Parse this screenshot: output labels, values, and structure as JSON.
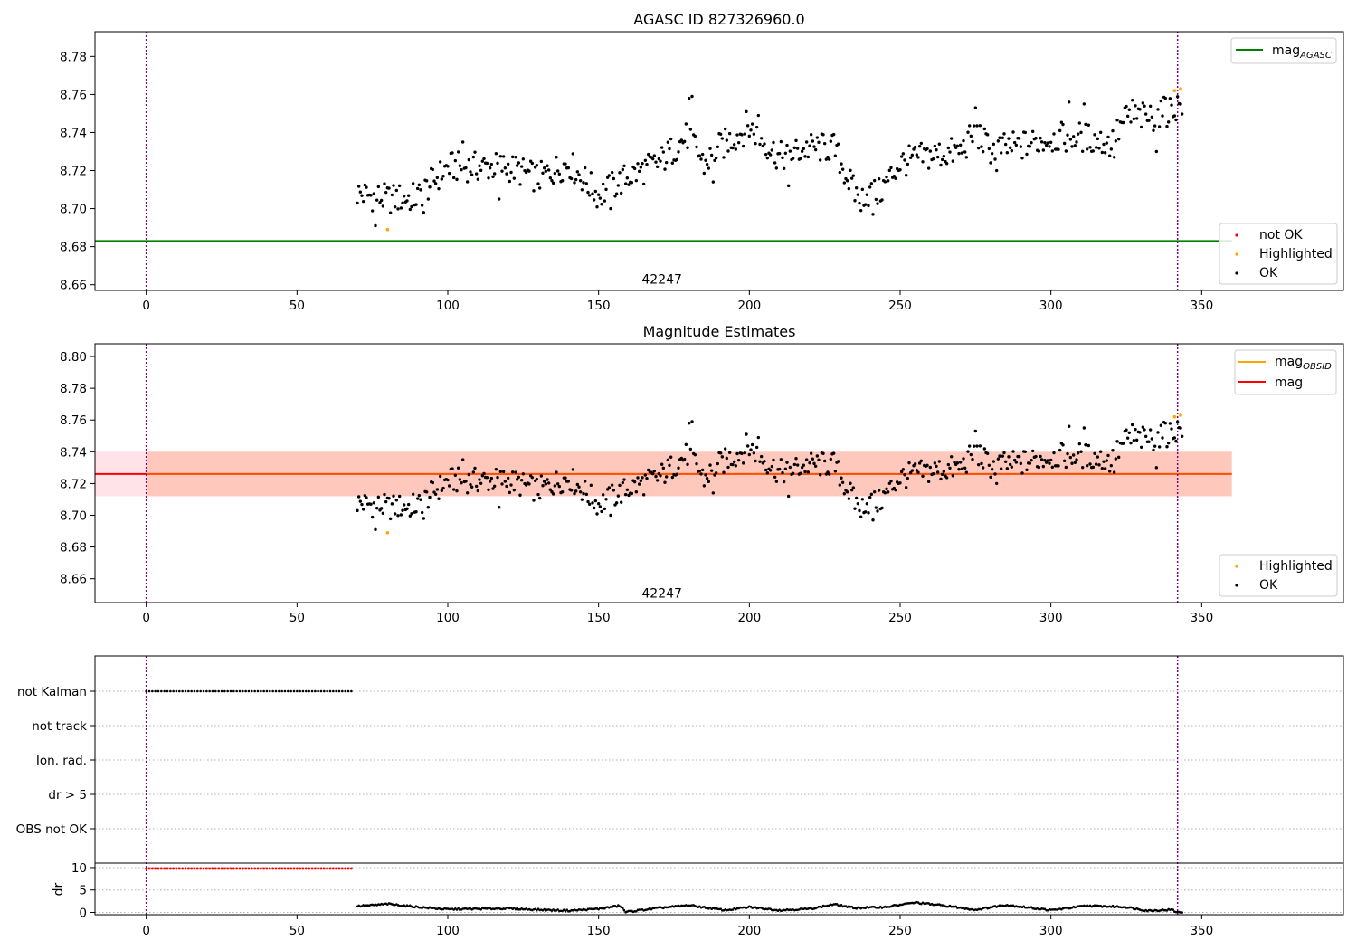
{
  "colors": {
    "ok": "#000000",
    "not_ok": "#ff0000",
    "highlighted": "#ffa500",
    "mag_agasc_line": "#008000",
    "mag_line": "#ff0000",
    "mag_obsid_line": "#ffa500",
    "band_outer": "#ffc0cb",
    "band_inner": "#ffa07a",
    "obs_marker": "#800080",
    "grid": "#b0b0b0"
  },
  "chart_data": [
    {
      "type": "scatter",
      "title": "AGASC ID 827326960.0",
      "xlim": [
        -17,
        397
      ],
      "ylim": [
        8.657,
        8.793
      ],
      "xticks": [
        0,
        50,
        100,
        150,
        200,
        250,
        300,
        350
      ],
      "xtick_labels": [
        "0",
        "50",
        "100",
        "150",
        "200",
        "250",
        "300",
        "350"
      ],
      "yticks": [
        8.66,
        8.68,
        8.7,
        8.72,
        8.74,
        8.76,
        8.78
      ],
      "ytick_labels": [
        "8.66",
        "8.68",
        "8.70",
        "8.72",
        "8.74",
        "8.76",
        "8.78"
      ],
      "obs_boundaries": [
        0,
        342
      ],
      "obsid_label": {
        "text": "42247",
        "x": 171,
        "y": 8.663
      },
      "hlines": [
        {
          "name": "mag_AGASC",
          "y": 8.683,
          "x": [
            -17,
            360
          ]
        }
      ],
      "legend_top": [
        {
          "label": "mag",
          "sub": "AGASC"
        }
      ],
      "legend_bottom": [
        "not OK",
        "Highlighted",
        "OK"
      ],
      "highlighted": [
        {
          "x": 80,
          "y": 8.689
        },
        {
          "x": 341,
          "y": 8.762
        },
        {
          "x": 343,
          "y": 8.763
        }
      ]
    },
    {
      "type": "scatter",
      "title": "Magnitude Estimates",
      "xlim": [
        -17,
        397
      ],
      "ylim": [
        8.645,
        8.808
      ],
      "xticks": [
        0,
        50,
        100,
        150,
        200,
        250,
        300,
        350
      ],
      "xtick_labels": [
        "0",
        "50",
        "100",
        "150",
        "200",
        "250",
        "300",
        "350"
      ],
      "yticks": [
        8.66,
        8.68,
        8.7,
        8.72,
        8.74,
        8.76,
        8.78,
        8.8
      ],
      "ytick_labels": [
        "8.66",
        "8.68",
        "8.70",
        "8.72",
        "8.74",
        "8.76",
        "8.78",
        "8.80"
      ],
      "obs_boundaries": [
        0,
        342
      ],
      "obsid_label": {
        "text": "42247",
        "x": 171,
        "y": 8.651
      },
      "mag": 8.726,
      "mag_band": [
        8.712,
        8.74
      ],
      "obsid_band": {
        "x": [
          0,
          360
        ],
        "y": [
          8.712,
          8.74
        ]
      },
      "outer_band": {
        "x": [
          -17,
          360
        ],
        "y": [
          8.712,
          8.74
        ]
      },
      "legend_top": [
        {
          "label": "mag",
          "sub": "OBSID"
        },
        {
          "label": "mag",
          "sub": ""
        }
      ],
      "legend_bottom": [
        "Highlighted",
        "OK"
      ],
      "highlighted": [
        {
          "x": 80,
          "y": 8.689
        },
        {
          "x": 341,
          "y": 8.762
        },
        {
          "x": 343,
          "y": 8.763
        }
      ]
    },
    {
      "type": "scatter",
      "title": "",
      "xlim": [
        -17,
        397
      ],
      "flag_rows": [
        "not Kalman",
        "not track",
        "Ion. rad.",
        "dr > 5",
        "OBS not OK"
      ],
      "flag_points": {
        "row": "not Kalman",
        "x_range": [
          0,
          68
        ],
        "step": 1
      },
      "dr_ylim": [
        -0.5,
        11
      ],
      "dr_yticks": [
        0,
        5,
        10
      ],
      "dr_ytick_labels": [
        "0",
        "5",
        "10"
      ],
      "dr_ylabel": "dr",
      "dr_high": {
        "x_range": [
          0,
          68
        ],
        "y": 9.8
      },
      "xticks": [
        0,
        50,
        100,
        150,
        200,
        250,
        300,
        350
      ],
      "xtick_labels": [
        "0",
        "50",
        "100",
        "150",
        "200",
        "250",
        "300",
        "350"
      ],
      "obs_boundaries": [
        0,
        342
      ]
    }
  ],
  "series_profile": {
    "x_start": 70,
    "x_end": 343,
    "mag_anchors": [
      [
        70,
        8.708
      ],
      [
        80,
        8.705
      ],
      [
        90,
        8.706
      ],
      [
        100,
        8.722
      ],
      [
        110,
        8.722
      ],
      [
        120,
        8.722
      ],
      [
        130,
        8.716
      ],
      [
        140,
        8.724
      ],
      [
        150,
        8.707
      ],
      [
        160,
        8.717
      ],
      [
        170,
        8.724
      ],
      [
        180,
        8.739
      ],
      [
        185,
        8.723
      ],
      [
        190,
        8.732
      ],
      [
        200,
        8.743
      ],
      [
        210,
        8.727
      ],
      [
        220,
        8.732
      ],
      [
        228,
        8.732
      ],
      [
        235,
        8.708
      ],
      [
        243,
        8.708
      ],
      [
        250,
        8.724
      ],
      [
        260,
        8.728
      ],
      [
        270,
        8.73
      ],
      [
        275,
        8.74
      ],
      [
        280,
        8.731
      ],
      [
        290,
        8.733
      ],
      [
        300,
        8.737
      ],
      [
        310,
        8.738
      ],
      [
        320,
        8.734
      ],
      [
        325,
        8.748
      ],
      [
        333,
        8.748
      ],
      [
        340,
        8.752
      ],
      [
        343,
        8.755
      ]
    ],
    "mag_spikes": [
      [
        76,
        8.691
      ],
      [
        88,
        8.701
      ],
      [
        92,
        8.698
      ],
      [
        105,
        8.735
      ],
      [
        117,
        8.705
      ],
      [
        154,
        8.7
      ],
      [
        180,
        8.758
      ],
      [
        181,
        8.759
      ],
      [
        188,
        8.714
      ],
      [
        199,
        8.751
      ],
      [
        203,
        8.749
      ],
      [
        213,
        8.712
      ],
      [
        237,
        8.699
      ],
      [
        241,
        8.697
      ],
      [
        275,
        8.753
      ],
      [
        282,
        8.72
      ],
      [
        306,
        8.756
      ],
      [
        311,
        8.755
      ],
      [
        321,
        8.727
      ],
      [
        327,
        8.757
      ],
      [
        335,
        8.73
      ],
      [
        338,
        8.758
      ]
    ],
    "dr_anchors": [
      [
        70,
        1.4
      ],
      [
        75,
        1.6
      ],
      [
        80,
        1.9
      ],
      [
        90,
        1.2
      ],
      [
        100,
        0.7
      ],
      [
        110,
        0.8
      ],
      [
        120,
        0.9
      ],
      [
        130,
        0.6
      ],
      [
        140,
        0.4
      ],
      [
        150,
        0.8
      ],
      [
        157,
        1.5
      ],
      [
        159,
        0.1
      ],
      [
        170,
        1.0
      ],
      [
        180,
        1.6
      ],
      [
        192,
        0.5
      ],
      [
        200,
        1.2
      ],
      [
        210,
        0.5
      ],
      [
        220,
        0.8
      ],
      [
        228,
        1.8
      ],
      [
        235,
        1.0
      ],
      [
        245,
        1.2
      ],
      [
        255,
        2.2
      ],
      [
        265,
        1.5
      ],
      [
        275,
        0.6
      ],
      [
        285,
        1.7
      ],
      [
        300,
        0.5
      ],
      [
        312,
        1.5
      ],
      [
        325,
        1.2
      ],
      [
        332,
        0.4
      ],
      [
        340,
        0.6
      ],
      [
        342,
        0.0
      ]
    ]
  }
}
